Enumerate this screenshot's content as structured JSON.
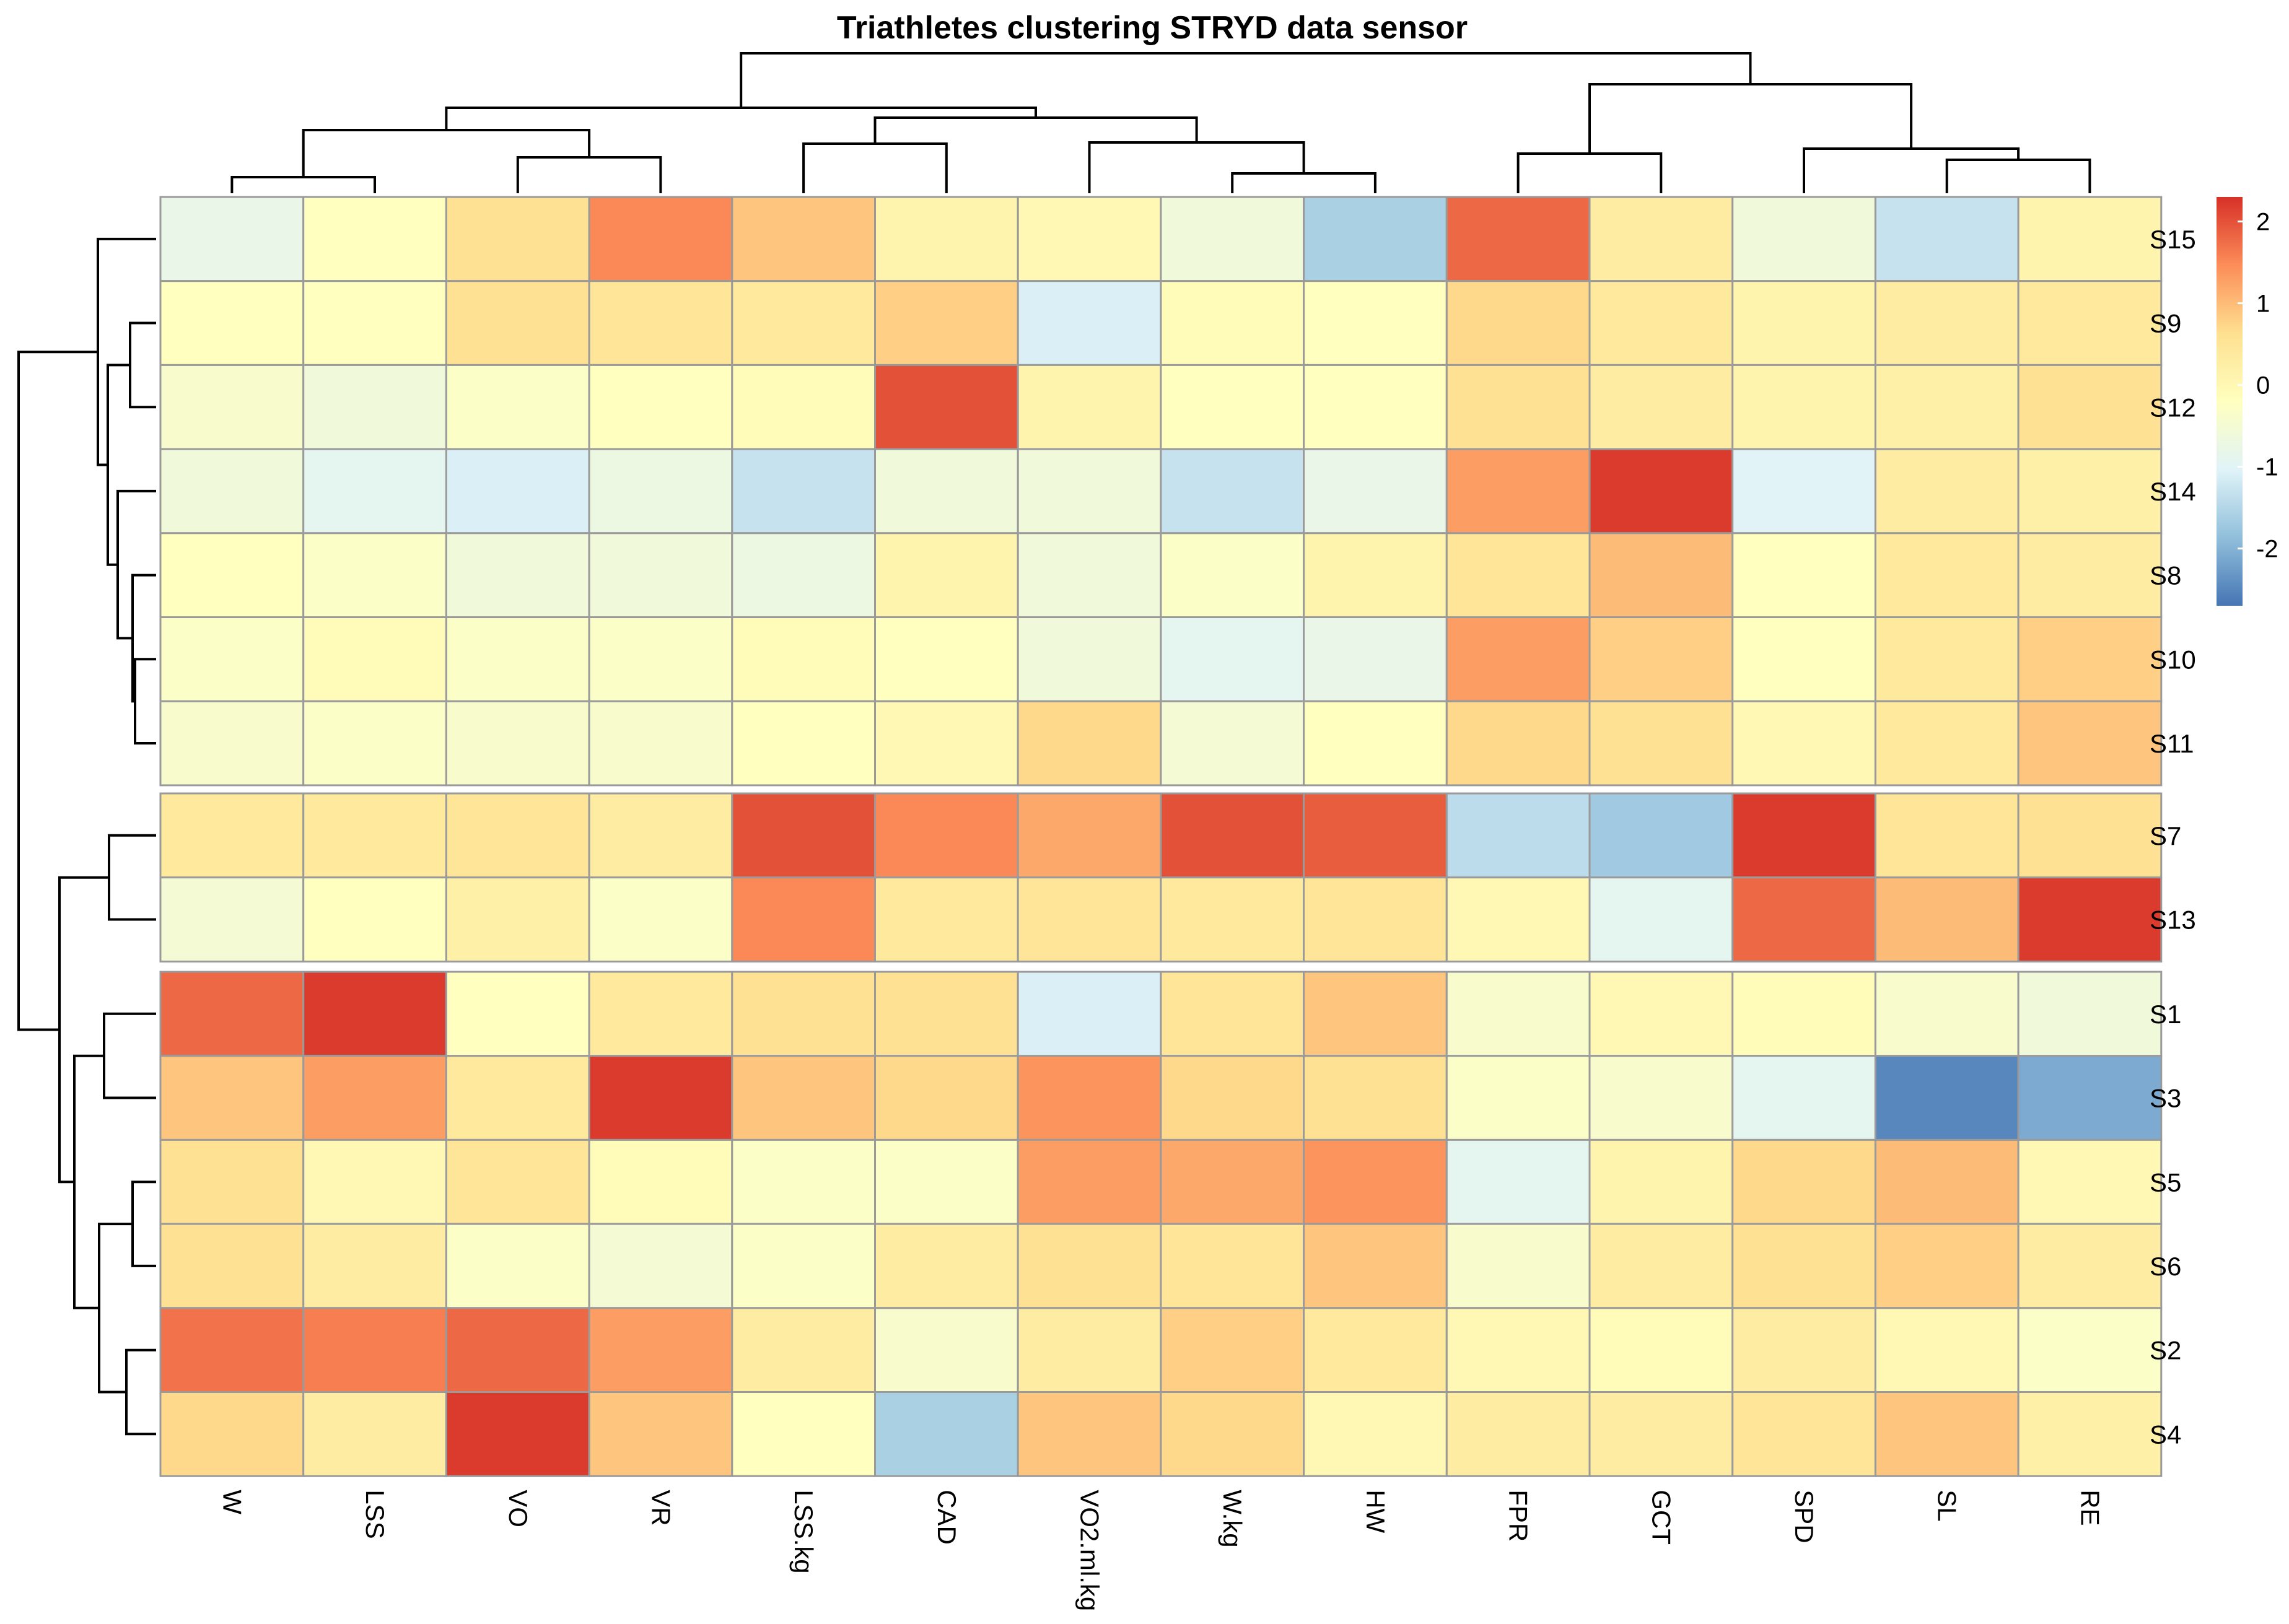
{
  "chart_data": {
    "type": "heatmap",
    "title": "Triathletes clustering STRYD data sensor",
    "columns": [
      "W",
      "LSS",
      "VO",
      "VR",
      "LSS.kg",
      "CAD",
      "VO2.ml.kg",
      "W.kg",
      "HW",
      "FPR",
      "GCT",
      "SPD",
      "SL",
      "RE"
    ],
    "row_groups": [
      [
        "S15",
        "S9",
        "S12",
        "S14",
        "S8",
        "S10",
        "S11"
      ],
      [
        "S7",
        "S13"
      ],
      [
        "S1",
        "S3",
        "S5",
        "S6",
        "S2",
        "S4"
      ]
    ],
    "values": [
      [
        -0.8,
        -0.2,
        0.6,
        1.5,
        0.9,
        0.1,
        0.0,
        -0.6,
        -1.6,
        1.8,
        0.3,
        -0.6,
        -1.3,
        0.1
      ],
      [
        -0.2,
        -0.2,
        0.6,
        0.5,
        0.4,
        0.8,
        -1.1,
        -0.1,
        -0.2,
        0.7,
        0.4,
        0.1,
        0.3,
        0.4
      ],
      [
        -0.4,
        -0.6,
        -0.3,
        -0.2,
        -0.1,
        2.0,
        0.1,
        -0.2,
        -0.2,
        0.6,
        0.3,
        0.1,
        0.2,
        0.6
      ],
      [
        -0.6,
        -0.9,
        -1.1,
        -0.7,
        -1.3,
        -0.6,
        -0.6,
        -1.3,
        -0.8,
        1.3,
        2.2,
        -1.0,
        0.3,
        0.2
      ],
      [
        -0.2,
        -0.3,
        -0.6,
        -0.6,
        -0.7,
        0.1,
        -0.6,
        -0.3,
        0.1,
        0.5,
        1.0,
        -0.2,
        0.4,
        0.3
      ],
      [
        -0.3,
        -0.1,
        -0.3,
        -0.3,
        -0.1,
        -0.2,
        -0.6,
        -0.9,
        -0.8,
        1.3,
        0.8,
        -0.2,
        0.4,
        0.8
      ],
      [
        -0.4,
        -0.3,
        -0.4,
        -0.4,
        -0.2,
        0.0,
        0.7,
        -0.5,
        -0.2,
        0.7,
        0.6,
        0.0,
        0.4,
        0.9
      ],
      [
        0.4,
        0.4,
        0.5,
        0.3,
        2.0,
        1.5,
        1.2,
        2.0,
        1.9,
        -1.4,
        -1.7,
        2.2,
        0.5,
        0.6
      ],
      [
        -0.5,
        -0.2,
        0.2,
        -0.3,
        1.5,
        0.4,
        0.5,
        0.4,
        0.5,
        0.0,
        -0.9,
        1.8,
        1.0,
        2.2
      ],
      [
        1.8,
        2.2,
        -0.2,
        0.4,
        0.6,
        0.6,
        -1.1,
        0.5,
        0.9,
        -0.4,
        0.0,
        -0.1,
        -0.4,
        -0.6
      ],
      [
        0.9,
        1.3,
        0.4,
        2.2,
        0.9,
        0.7,
        1.4,
        0.7,
        0.6,
        -0.3,
        -0.4,
        -0.9,
        -2.5,
        -2.1
      ],
      [
        0.6,
        0.0,
        0.5,
        -0.1,
        -0.3,
        -0.3,
        1.3,
        1.2,
        1.4,
        -0.9,
        0.1,
        0.7,
        1.0,
        0.0
      ],
      [
        0.6,
        0.3,
        -0.3,
        -0.5,
        -0.3,
        0.3,
        0.6,
        0.5,
        0.9,
        -0.4,
        0.3,
        0.6,
        0.8,
        0.3
      ],
      [
        1.7,
        1.6,
        1.8,
        1.3,
        0.3,
        -0.4,
        0.3,
        0.8,
        0.4,
        0.0,
        -0.1,
        0.3,
        0.0,
        -0.3
      ],
      [
        0.7,
        0.3,
        2.2,
        0.9,
        -0.2,
        -1.6,
        0.9,
        0.7,
        0.0,
        0.3,
        0.3,
        0.5,
        0.9,
        0.2
      ]
    ],
    "color_scale": {
      "min": -2.7,
      "max": 2.3,
      "ticks": [
        2,
        1,
        0,
        -1,
        -2
      ],
      "colors": [
        "#4575B4",
        "#91BFDB",
        "#E0F3F8",
        "#FFFFBF",
        "#FEE090",
        "#FC8D59",
        "#D73027"
      ]
    },
    "row_dendrogram": true,
    "column_dendrogram": true,
    "legend_placement": "right"
  }
}
